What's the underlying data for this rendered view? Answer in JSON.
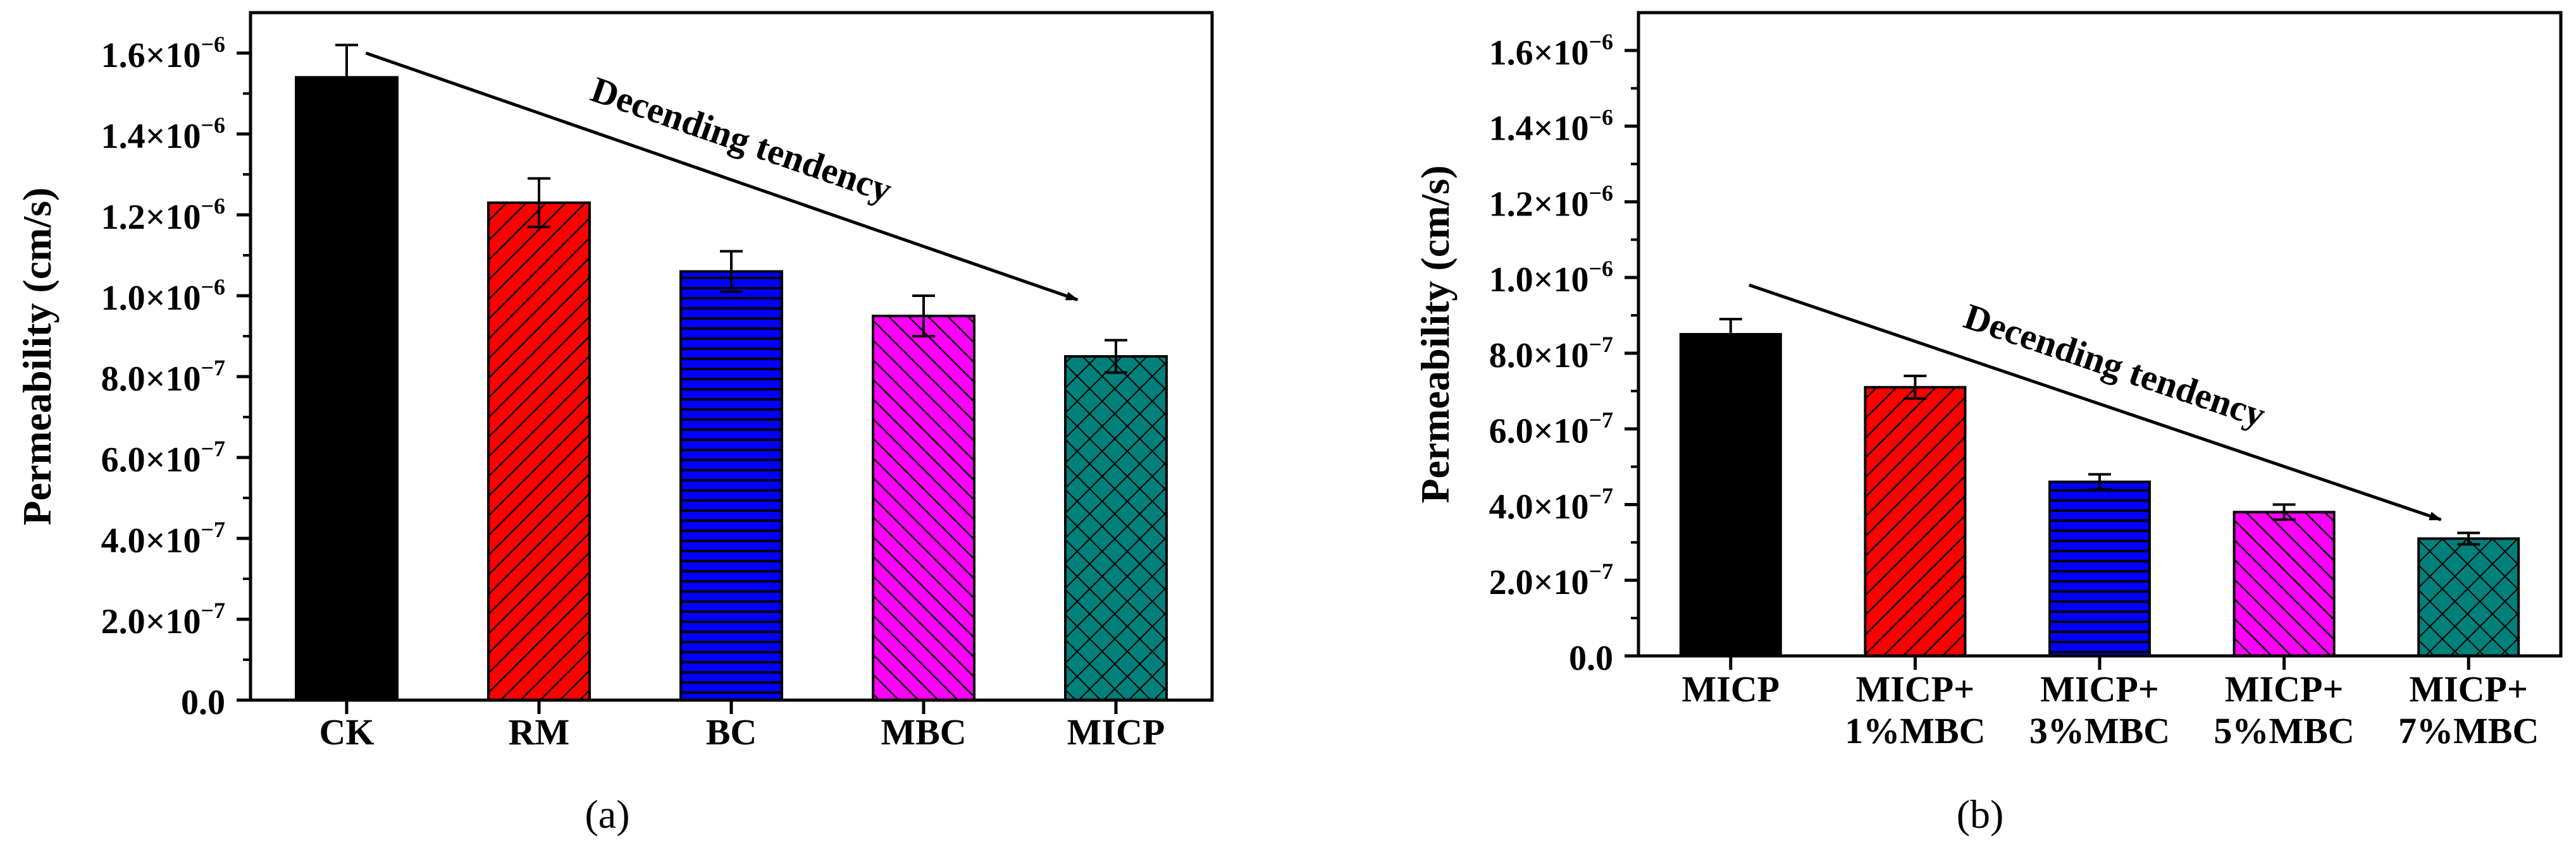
{
  "colors": {
    "black": "#000000",
    "red": "#ff0000",
    "blue": "#0000ff",
    "magenta": "#ff00ff",
    "teal": "#00807a"
  },
  "chart_data": [
    {
      "type": "bar",
      "panel_label": "(a)",
      "ylabel": "Permeability (cm/s)",
      "xlabel": "",
      "ylim": [
        0,
        1.7e-06
      ],
      "yticks": [
        0,
        2e-07,
        4e-07,
        6e-07,
        8e-07,
        1e-06,
        1.2e-06,
        1.4e-06,
        1.6e-06
      ],
      "ytick_labels": [
        {
          "mantissa": "0.0",
          "exp": ""
        },
        {
          "mantissa": "2.0×10",
          "exp": "−7"
        },
        {
          "mantissa": "4.0×10",
          "exp": "−7"
        },
        {
          "mantissa": "6.0×10",
          "exp": "−7"
        },
        {
          "mantissa": "8.0×10",
          "exp": "−7"
        },
        {
          "mantissa": "1.0×10",
          "exp": "−6"
        },
        {
          "mantissa": "1.2×10",
          "exp": "−6"
        },
        {
          "mantissa": "1.4×10",
          "exp": "−6"
        },
        {
          "mantissa": "1.6×10",
          "exp": "−6"
        }
      ],
      "categories": [
        [
          "CK"
        ],
        [
          "RM"
        ],
        [
          "BC"
        ],
        [
          "MBC"
        ],
        [
          "MICP"
        ]
      ],
      "values": [
        1.54e-06,
        1.23e-06,
        1.06e-06,
        9.5e-07,
        8.5e-07
      ],
      "errors": [
        8e-08,
        6e-08,
        5e-08,
        5e-08,
        4e-08
      ],
      "bar_colors": [
        "black",
        "red",
        "blue",
        "magenta",
        "teal"
      ],
      "bar_patterns": [
        "solid",
        "diag-right",
        "horizontal",
        "diag-left",
        "crosshatch"
      ],
      "annotation": {
        "text": "Decending tendency",
        "arrow": {
          "from": [
            0.6,
            1.6e-06
          ],
          "to": [
            4.3,
            9.9e-07
          ]
        }
      }
    },
    {
      "type": "bar",
      "panel_label": "(b)",
      "ylabel": "Permeability (cm/s)",
      "xlabel": "",
      "ylim": [
        0,
        1.7e-06
      ],
      "yticks": [
        0,
        2e-07,
        4e-07,
        6e-07,
        8e-07,
        1e-06,
        1.2e-06,
        1.4e-06,
        1.6e-06
      ],
      "ytick_labels": [
        {
          "mantissa": "0.0",
          "exp": ""
        },
        {
          "mantissa": "2.0×10",
          "exp": "−7"
        },
        {
          "mantissa": "4.0×10",
          "exp": "−7"
        },
        {
          "mantissa": "6.0×10",
          "exp": "−7"
        },
        {
          "mantissa": "8.0×10",
          "exp": "−7"
        },
        {
          "mantissa": "1.0×10",
          "exp": "−6"
        },
        {
          "mantissa": "1.2×10",
          "exp": "−6"
        },
        {
          "mantissa": "1.4×10",
          "exp": "−6"
        },
        {
          "mantissa": "1.6×10",
          "exp": "−6"
        }
      ],
      "categories": [
        [
          "MICP"
        ],
        [
          "MICP+",
          "1%MBC"
        ],
        [
          "MICP+",
          "3%MBC"
        ],
        [
          "MICP+",
          "5%MBC"
        ],
        [
          "MICP+",
          "7%MBC"
        ]
      ],
      "values": [
        8.5e-07,
        7.1e-07,
        4.6e-07,
        3.8e-07,
        3.1e-07
      ],
      "errors": [
        4e-08,
        3e-08,
        2e-08,
        2e-08,
        1.5e-08
      ],
      "bar_colors": [
        "black",
        "red",
        "blue",
        "magenta",
        "teal"
      ],
      "bar_patterns": [
        "solid",
        "diag-right",
        "horizontal",
        "diag-left",
        "crosshatch"
      ],
      "annotation": {
        "text": "Decending tendency",
        "arrow": {
          "from": [
            0.6,
            9.8e-07
          ],
          "to": [
            4.35,
            3.6e-07
          ]
        }
      }
    }
  ]
}
